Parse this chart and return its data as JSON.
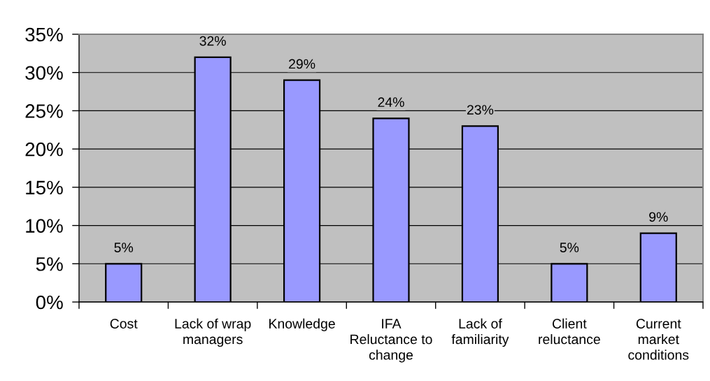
{
  "chart_data": {
    "type": "bar",
    "categories": [
      "Cost",
      "Lack of wrap\nmanagers",
      "Knowledge",
      "IFA\nReluctance to\nchange",
      "Lack of\nfamiliarity",
      "Client\nreluctance",
      "Current\nmarket\nconditions"
    ],
    "values": [
      5,
      32,
      29,
      24,
      23,
      5,
      9
    ],
    "color": "#9999ff",
    "value_labels": [
      "5%",
      "32%",
      "29%",
      "24%",
      "23%",
      "5%",
      "9%"
    ],
    "ylim": [
      0,
      35
    ],
    "yticks": [
      {
        "value": 0,
        "label": "0%"
      },
      {
        "value": 5,
        "label": "5%"
      },
      {
        "value": 10,
        "label": "10%"
      },
      {
        "value": 15,
        "label": "15%"
      },
      {
        "value": 20,
        "label": "20%"
      },
      {
        "value": 25,
        "label": "25%"
      },
      {
        "value": 30,
        "label": "30%"
      },
      {
        "value": 35,
        "label": "35%"
      }
    ],
    "grid": "y"
  }
}
